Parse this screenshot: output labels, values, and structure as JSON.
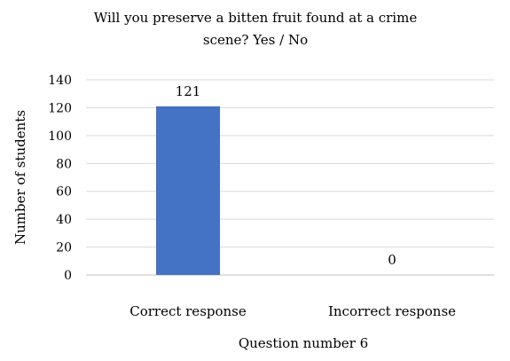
{
  "chart_data": {
    "type": "bar",
    "title_lines": [
      "Will you preserve a bitten fruit found at a crime",
      "scene? Yes / No"
    ],
    "categories": [
      "Correct response",
      "Incorrect response"
    ],
    "values": [
      121,
      0
    ],
    "data_labels": [
      "121",
      "0"
    ],
    "xlabel": "Question number 6",
    "ylabel": "Number of students",
    "ylim": [
      0,
      140
    ],
    "yticks": [
      0,
      20,
      40,
      60,
      80,
      100,
      120,
      140
    ],
    "grid": true,
    "legend": "none",
    "colors": {
      "bar": "#4472C4",
      "grid": "#D9D9D9",
      "axis": "#BFBFBF"
    }
  }
}
